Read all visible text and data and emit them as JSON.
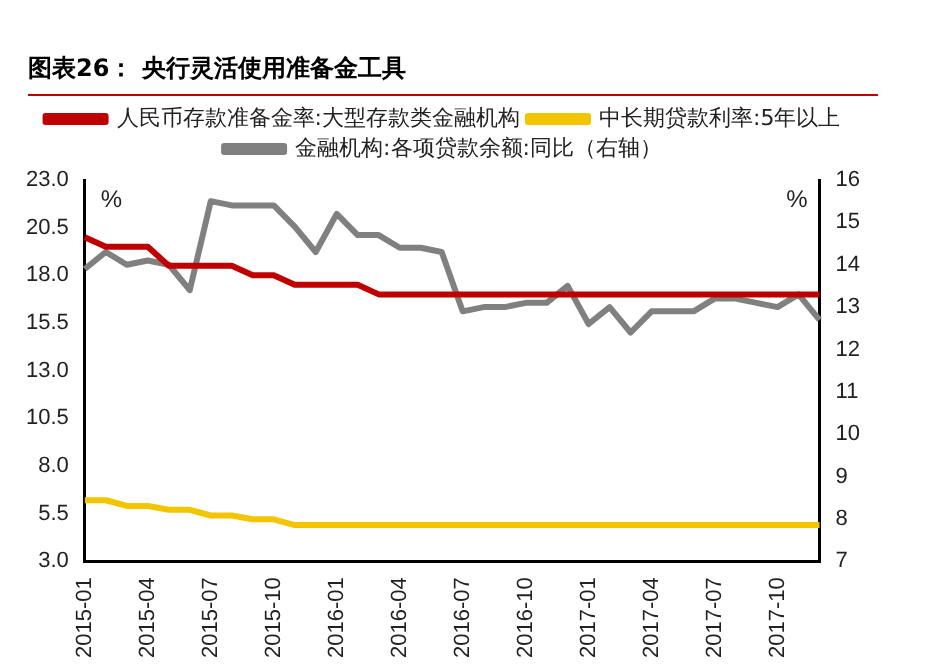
{
  "chart_data": {
    "type": "line",
    "title": "图表26：  央行灵活使用准备金工具",
    "categories": [
      "2015-01",
      null,
      null,
      "2015-04",
      null,
      null,
      "2015-07",
      null,
      null,
      "2015-10",
      null,
      null,
      "2016-01",
      null,
      null,
      "2016-04",
      null,
      null,
      "2016-07",
      null,
      null,
      "2016-10",
      null,
      null,
      "2017-01",
      null,
      null,
      "2017-04",
      null,
      null,
      "2017-07",
      null,
      null,
      "2017-10",
      null,
      null
    ],
    "series": [
      {
        "name": "人民币存款准备金率:大型存款类金融机构",
        "color": "#c00000",
        "values": [
          20.0,
          19.5,
          19.5,
          19.5,
          18.5,
          18.5,
          18.5,
          18.5,
          18.0,
          18.0,
          17.5,
          17.5,
          17.5,
          17.5,
          17.0,
          17.0,
          17.0,
          17.0,
          17.0,
          17.0,
          17.0,
          17.0,
          17.0,
          17.0,
          17.0,
          17.0,
          17.0,
          17.0,
          17.0,
          17.0,
          17.0,
          17.0,
          17.0,
          17.0,
          17.0,
          17.0
        ]
      },
      {
        "name": "中长期贷款利率:5年以上",
        "color": "#f2c500",
        "values": [
          6.2,
          6.2,
          5.9,
          5.9,
          5.7,
          5.7,
          5.4,
          5.4,
          5.2,
          5.2,
          4.9,
          4.9,
          4.9,
          4.9,
          4.9,
          4.9,
          4.9,
          4.9,
          4.9,
          4.9,
          4.9,
          4.9,
          4.9,
          4.9,
          4.9,
          4.9,
          4.9,
          4.9,
          4.9,
          4.9,
          4.9,
          4.9,
          4.9,
          4.9,
          4.9,
          4.9
        ]
      },
      {
        "name": "金融机构:各项贷款余额:同比（右轴）",
        "color": "#808080",
        "axis": "y2",
        "values": [
          13.9,
          14.3,
          14.0,
          14.1,
          14.0,
          13.4,
          15.5,
          15.4,
          15.4,
          15.4,
          14.9,
          14.3,
          15.2,
          14.7,
          14.7,
          14.4,
          14.4,
          14.3,
          12.9,
          13.0,
          13.0,
          13.1,
          13.1,
          13.5,
          12.6,
          13.0,
          12.4,
          12.9,
          12.9,
          12.9,
          13.2,
          13.2,
          13.1,
          13.0,
          13.3,
          12.7
        ]
      }
    ],
    "ylabel": "%",
    "y2label": "%",
    "ylim": [
      3.0,
      23.0
    ],
    "yticks": [
      {
        "value": 3,
        "label": "3.0"
      },
      {
        "value": 5.5,
        "label": "5.5"
      },
      {
        "value": 8,
        "label": "8.0"
      },
      {
        "value": 10.5,
        "label": "10.5"
      },
      {
        "value": 13,
        "label": "13.0"
      },
      {
        "value": 15.5,
        "label": "15.5"
      },
      {
        "value": 18,
        "label": "18.0"
      },
      {
        "value": 20.5,
        "label": "20.5"
      },
      {
        "value": 23,
        "label": "23.0"
      }
    ],
    "y2lim": [
      7,
      16
    ],
    "y2ticks": [
      7,
      8,
      9,
      10,
      11,
      12,
      13,
      14,
      15,
      16
    ],
    "grid": false,
    "legend": "top",
    "marker": "none",
    "line_style": "solid"
  }
}
